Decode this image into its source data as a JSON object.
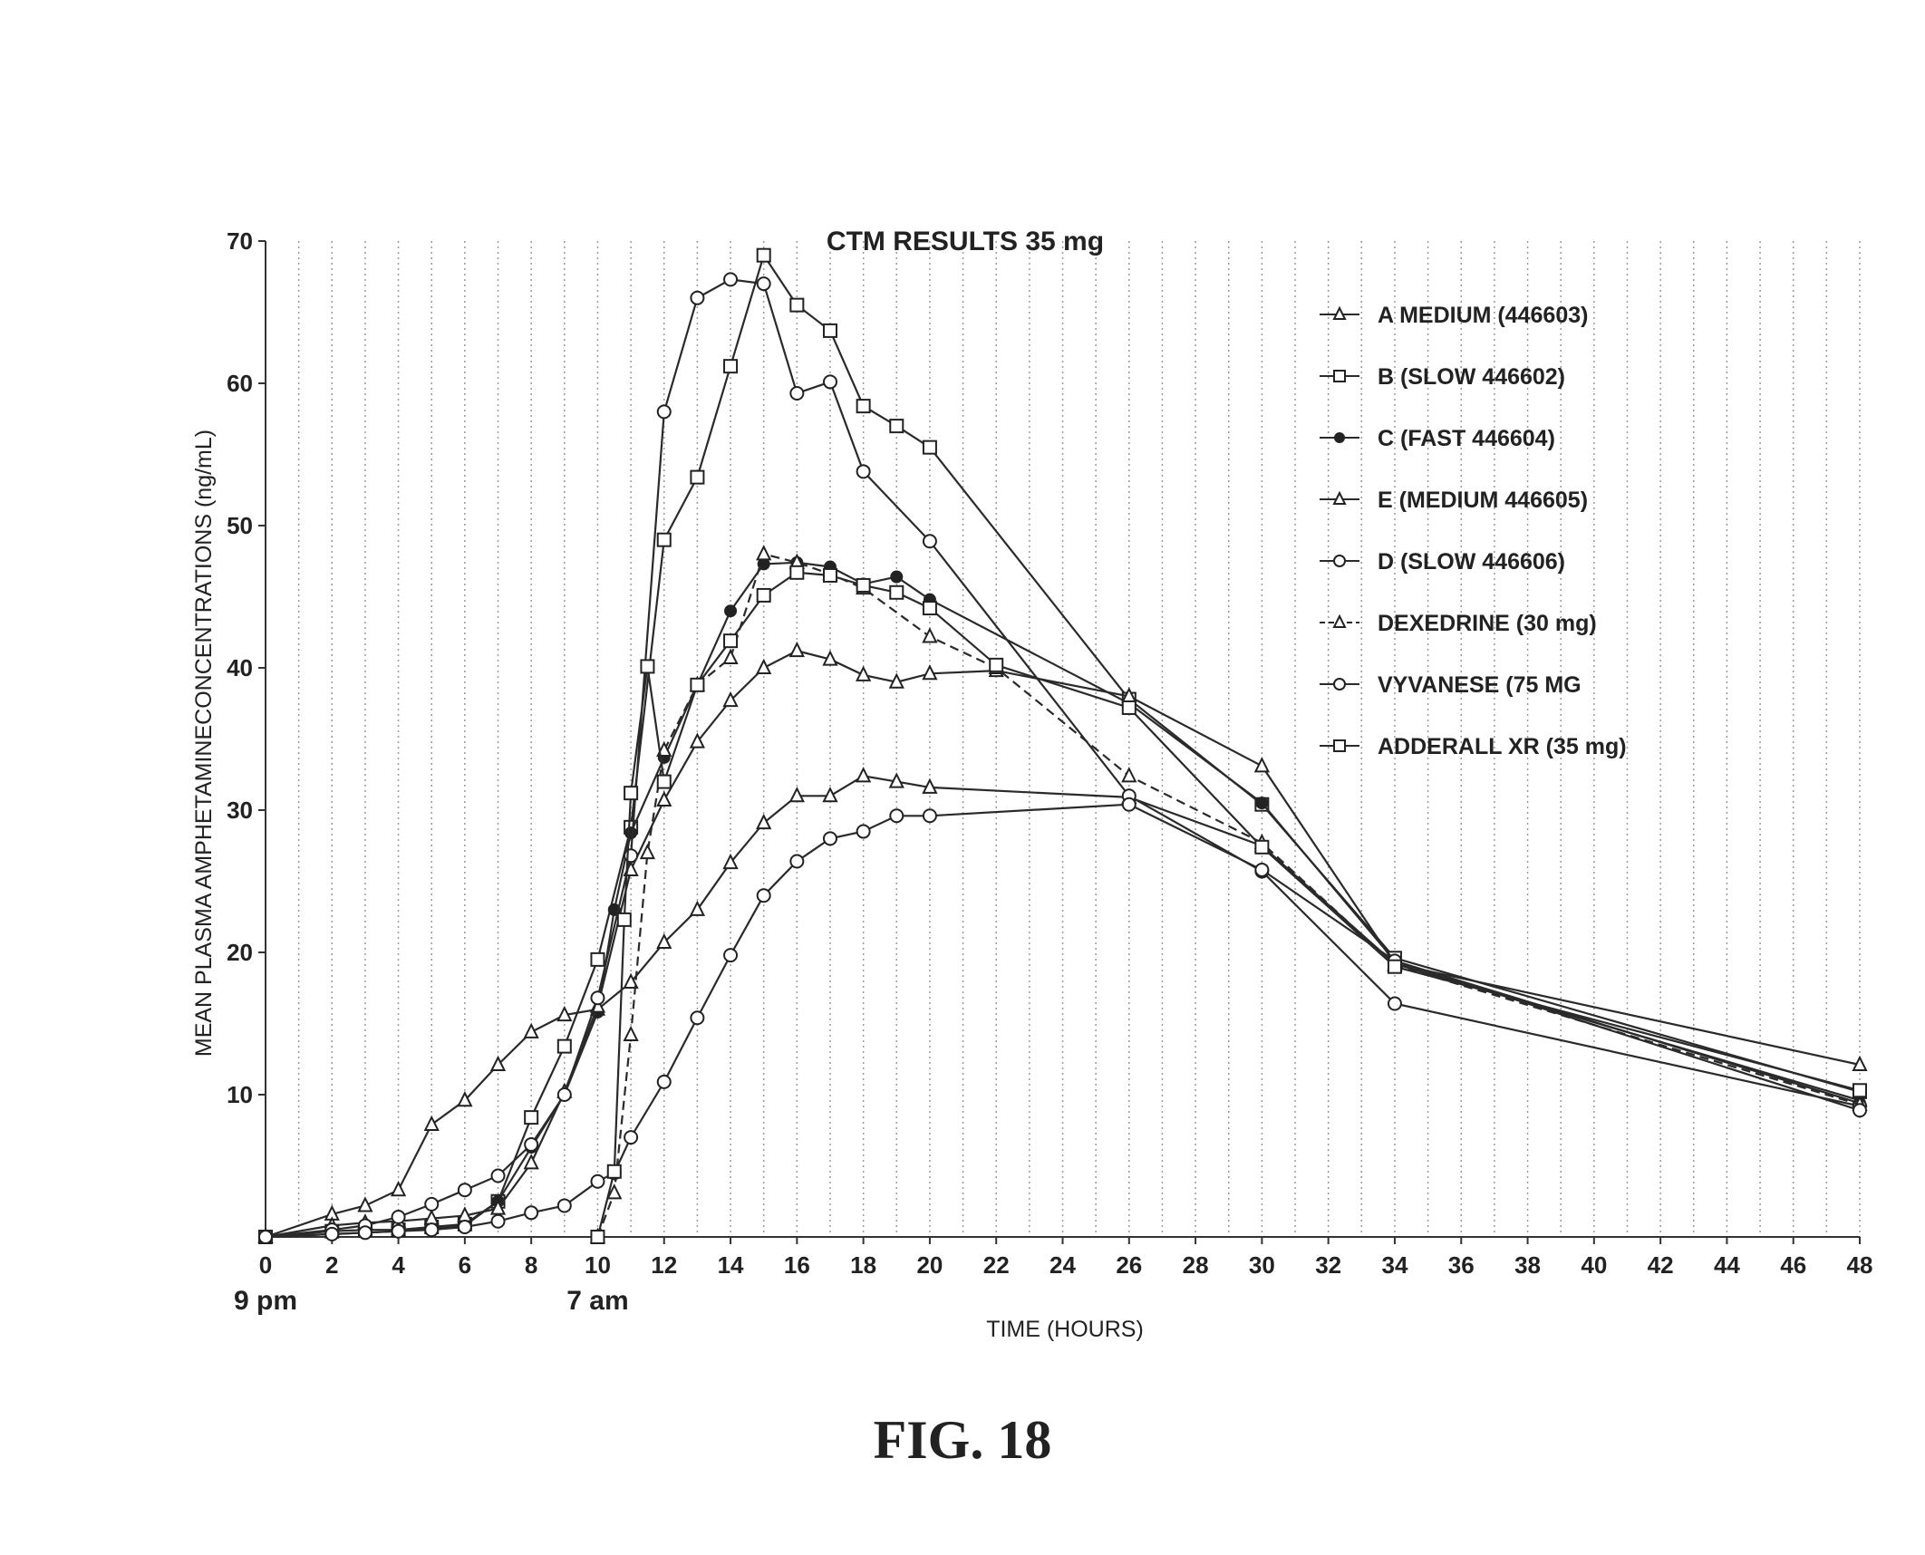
{
  "figure_label": "FIG. 18",
  "chart_data": {
    "type": "line",
    "title": "CTM RESULTS 35 mg",
    "xlabel": "TIME (HOURS)",
    "ylabel": "MEAN PLASMA AMPHETAMINECONCENTRATIONS (ng/mL)",
    "xlim": [
      0,
      48
    ],
    "ylim": [
      0,
      70
    ],
    "x_ticks": [
      0,
      2,
      4,
      6,
      8,
      10,
      12,
      14,
      16,
      18,
      20,
      22,
      24,
      26,
      28,
      30,
      32,
      34,
      36,
      38,
      40,
      42,
      44,
      46,
      48
    ],
    "y_ticks": [
      10,
      20,
      30,
      40,
      50,
      60,
      70
    ],
    "y_tick_labels": [
      "10",
      "20",
      "30",
      "40",
      "50",
      "60",
      "70"
    ],
    "x_annotations": [
      {
        "x": 0,
        "text": "9 pm"
      },
      {
        "x": 10,
        "text": "7 am"
      }
    ],
    "grid": "vertical-dotted",
    "legend_position": "top-right",
    "series": [
      {
        "name": "A  MEDIUM (446603)",
        "marker": "triangle",
        "dashed": false,
        "x": [
          0,
          2,
          3,
          4,
          5,
          6,
          7,
          8,
          9,
          10,
          11,
          12,
          13,
          14,
          15,
          16,
          17,
          18,
          19,
          20,
          26,
          30,
          34,
          48
        ],
        "y": [
          0,
          1.6,
          2.2,
          3.3,
          7.9,
          9.6,
          12.1,
          14.4,
          15.6,
          16.0,
          17.9,
          20.7,
          23.0,
          26.3,
          29.1,
          31.0,
          31.0,
          32.4,
          32.0,
          31.6,
          30.9,
          27.5,
          19.2,
          9.6
        ]
      },
      {
        "name": "B (SLOW 446602)",
        "marker": "square",
        "dashed": false,
        "x": [
          0,
          2,
          3,
          4,
          5,
          6,
          7,
          8,
          9,
          10,
          11,
          12,
          13,
          14,
          15,
          16,
          17,
          18,
          19,
          20,
          26,
          30,
          34,
          48
        ],
        "y": [
          0,
          0.4,
          0.5,
          0.5,
          0.7,
          0.9,
          2.5,
          8.4,
          13.4,
          19.5,
          28.8,
          49.0,
          53.4,
          61.2,
          69.0,
          65.5,
          63.7,
          58.4,
          57.0,
          55.5,
          37.8,
          30.4,
          19.6,
          10.2
        ]
      },
      {
        "name": "C (FAST 446604)",
        "marker": "dot",
        "dashed": false,
        "x": [
          0,
          2,
          3,
          4,
          5,
          6,
          7,
          8,
          9,
          10,
          10.5,
          11,
          12,
          13,
          14,
          15,
          16,
          17,
          18,
          19,
          20,
          26,
          30,
          34,
          48
        ],
        "y": [
          0,
          0.2,
          0.3,
          0.4,
          0.6,
          0.8,
          2.5,
          6.3,
          10.0,
          15.8,
          23.0,
          28.4,
          33.7,
          38.8,
          44.0,
          47.3,
          47.4,
          47.1,
          45.9,
          46.4,
          44.8,
          37.5,
          30.5,
          19.4,
          9.4
        ]
      },
      {
        "name": "E (MEDIUM 446605)",
        "marker": "triangle",
        "dashed": false,
        "x": [
          0,
          2,
          3,
          4,
          5,
          6,
          7,
          8,
          9,
          10,
          11,
          12,
          13,
          14,
          15,
          16,
          17,
          18,
          19,
          20,
          22,
          26,
          30,
          34,
          48
        ],
        "y": [
          0,
          0.8,
          1.0,
          1.1,
          1.3,
          1.5,
          2.0,
          5.2,
          10.2,
          16.2,
          25.8,
          30.7,
          34.8,
          37.7,
          40.0,
          41.2,
          40.6,
          39.5,
          39.0,
          39.6,
          39.8,
          38.0,
          33.1,
          19.2,
          12.1
        ]
      },
      {
        "name": "D (SLOW 446606)",
        "marker": "circle",
        "dashed": false,
        "x": [
          0,
          2,
          3,
          4,
          5,
          6,
          7,
          8,
          9,
          10,
          11,
          12,
          13,
          14,
          15,
          16,
          17,
          18,
          20,
          26,
          30,
          34,
          48
        ],
        "y": [
          0,
          0.5,
          0.8,
          1.4,
          2.3,
          3.3,
          4.3,
          6.5,
          10.0,
          16.8,
          26.8,
          58.0,
          66.0,
          67.3,
          67.0,
          59.3,
          60.1,
          53.8,
          48.9,
          31.0,
          25.7,
          16.4,
          9.2
        ]
      },
      {
        "name": "DEXEDRINE (30 mg)",
        "marker": "triangle",
        "dashed": true,
        "x": [
          10,
          10.5,
          11,
          11.5,
          12,
          13,
          14,
          15,
          16,
          17,
          18,
          20,
          22,
          26,
          30,
          34,
          48
        ],
        "y": [
          0,
          3.1,
          14.2,
          27.0,
          34.2,
          38.8,
          40.7,
          48.0,
          47.4,
          46.6,
          45.6,
          42.2,
          40.0,
          32.4,
          27.7,
          19.1,
          9.3
        ]
      },
      {
        "name": "VYVANESE (75 MG",
        "marker": "circle",
        "dashed": false,
        "x": [
          0,
          2,
          3,
          4,
          5,
          6,
          7,
          8,
          9,
          10,
          10.5,
          11,
          12,
          13,
          14,
          15,
          16,
          17,
          18,
          19,
          20,
          26,
          30,
          34,
          48
        ],
        "y": [
          0,
          0.2,
          0.3,
          0.4,
          0.5,
          0.7,
          1.1,
          1.7,
          2.2,
          3.9,
          4.5,
          7.0,
          10.9,
          15.4,
          19.8,
          24.0,
          26.4,
          28.0,
          28.5,
          29.6,
          29.6,
          30.4,
          25.8,
          19.4,
          8.9
        ]
      },
      {
        "name": "ADDERALL XR (35 mg)",
        "marker": "square",
        "dashed": false,
        "x": [
          10,
          10.5,
          10.8,
          11,
          11.5,
          12,
          13,
          14,
          15,
          16,
          17,
          18,
          19,
          20,
          22,
          26,
          30,
          34,
          48
        ],
        "y": [
          0,
          4.6,
          22.3,
          31.2,
          40.1,
          32.0,
          38.8,
          41.9,
          45.1,
          46.7,
          46.5,
          45.8,
          45.3,
          44.2,
          40.2,
          37.2,
          27.4,
          19.0,
          10.3
        ]
      }
    ]
  }
}
